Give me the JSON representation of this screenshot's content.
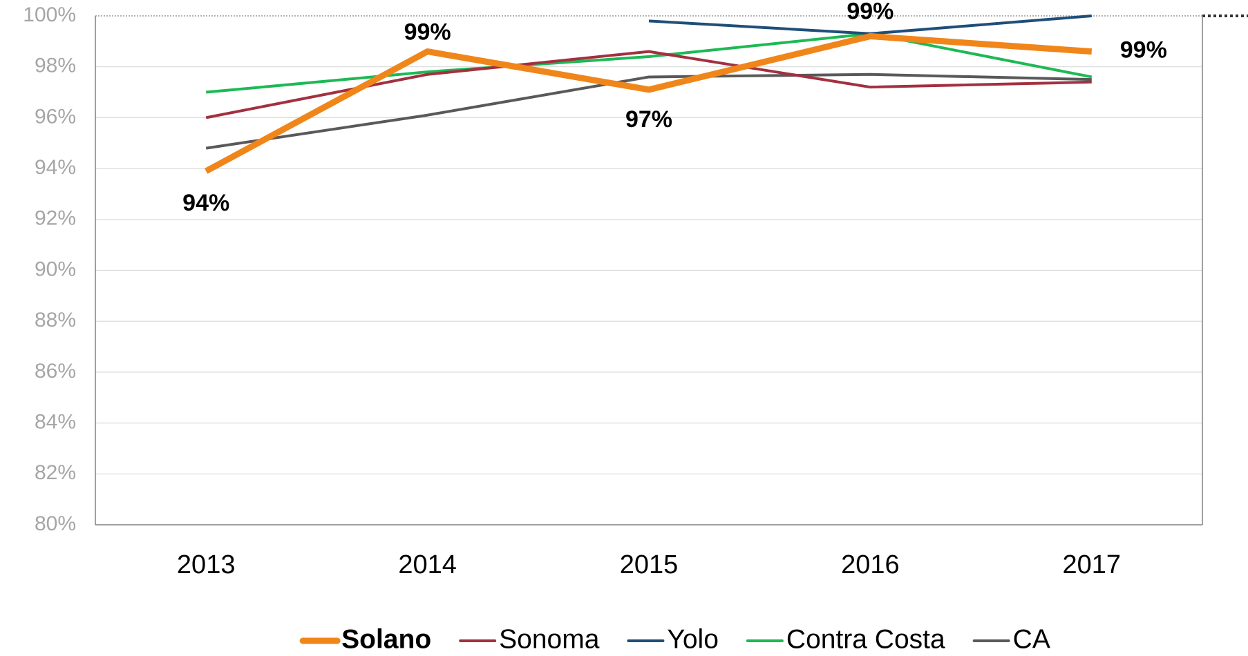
{
  "chart_data": {
    "type": "line",
    "categories": [
      "2013",
      "2014",
      "2015",
      "2016",
      "2017"
    ],
    "ylim": [
      80,
      100
    ],
    "yticks": [
      {
        "value": 80,
        "label": "80%"
      },
      {
        "value": 82,
        "label": "82%"
      },
      {
        "value": 84,
        "label": "84%"
      },
      {
        "value": 86,
        "label": "86%"
      },
      {
        "value": 88,
        "label": "88%"
      },
      {
        "value": 90,
        "label": "90%"
      },
      {
        "value": 92,
        "label": "92%"
      },
      {
        "value": 94,
        "label": "94%"
      },
      {
        "value": 96,
        "label": "96%"
      },
      {
        "value": 98,
        "label": "98%"
      },
      {
        "value": 100,
        "label": "100%"
      }
    ],
    "grid": true,
    "legend": "bottom",
    "series": [
      {
        "name": "Solano",
        "color": "#f0861a",
        "values": [
          93.9,
          98.6,
          97.1,
          99.2,
          98.6
        ],
        "value_labels": [
          "94%",
          "99%",
          "97%",
          "99%",
          "99%"
        ]
      },
      {
        "name": "Sonoma",
        "color": "#a3303f",
        "values": [
          96.0,
          97.7,
          98.6,
          97.2,
          97.4
        ]
      },
      {
        "name": "Yolo",
        "color": "#1f4e79",
        "values": [
          null,
          null,
          99.8,
          99.3,
          100.0
        ]
      },
      {
        "name": "Contra Costa",
        "color": "#1db954",
        "values": [
          97.0,
          97.8,
          98.4,
          99.3,
          97.6
        ]
      },
      {
        "name": "CA",
        "color": "#595959",
        "values": [
          94.8,
          96.1,
          97.6,
          97.7,
          97.5
        ]
      }
    ]
  }
}
